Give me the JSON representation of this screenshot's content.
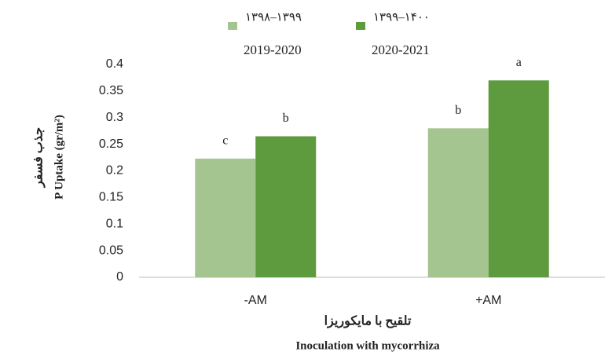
{
  "chart_data": {
    "type": "bar",
    "y_title_fa": "جذب فسفر",
    "y_title": "P Uptake (gr/m²)",
    "x_title_fa": "تلقیح با مایکوریزا",
    "x_title": "Inoculation with mycorrhiza",
    "categories": [
      "-AM",
      "+AM"
    ],
    "series": [
      {
        "name": "۱۳۹۸–۱۳۹۹",
        "name_en": "2019-2020",
        "color": "#a5c590",
        "values": [
          0.223,
          0.28
        ],
        "letters": [
          "c",
          "b"
        ]
      },
      {
        "name": "۱۳۹۹–۱۴۰۰",
        "name_en": "2020-2021",
        "color": "#5e9b3f",
        "values": [
          0.265,
          0.37
        ],
        "letters": [
          "b",
          "a"
        ]
      }
    ],
    "ylim": [
      0,
      0.4
    ],
    "yticks": [
      0,
      0.05,
      0.1,
      0.15,
      0.2,
      0.25,
      0.3,
      0.35,
      0.4
    ],
    "grid": false
  }
}
